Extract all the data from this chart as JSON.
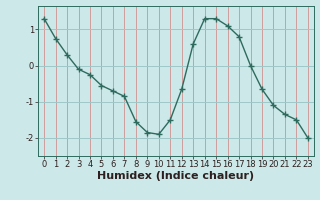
{
  "x": [
    0,
    1,
    2,
    3,
    4,
    5,
    6,
    7,
    8,
    9,
    10,
    11,
    12,
    13,
    14,
    15,
    16,
    17,
    18,
    19,
    20,
    21,
    22,
    23
  ],
  "y": [
    1.3,
    0.75,
    0.3,
    -0.1,
    -0.25,
    -0.55,
    -0.7,
    -0.85,
    -1.55,
    -1.85,
    -1.9,
    -1.5,
    -0.65,
    0.6,
    1.3,
    1.3,
    1.1,
    0.8,
    0.0,
    -0.65,
    -1.1,
    -1.35,
    -1.5,
    -2.0
  ],
  "line_color": "#2e6b5e",
  "marker": "+",
  "marker_size": 4,
  "bg_color": "#cce8e8",
  "h_grid_color": "#a0c8c8",
  "v_grid_color": "#d08080",
  "axis_color": "#2e6b5e",
  "tick_color": "#2e2020",
  "xlabel": "Humidex (Indice chaleur)",
  "ylim": [
    -2.5,
    1.65
  ],
  "xlim": [
    -0.5,
    23.5
  ],
  "yticks": [
    -2,
    -1,
    0,
    1
  ],
  "xticks": [
    0,
    1,
    2,
    3,
    4,
    5,
    6,
    7,
    8,
    9,
    10,
    11,
    12,
    13,
    14,
    15,
    16,
    17,
    18,
    19,
    20,
    21,
    22,
    23
  ],
  "xlabel_fontsize": 8,
  "tick_fontsize": 6,
  "linewidth": 1.0,
  "marker_edge_width": 1.0
}
